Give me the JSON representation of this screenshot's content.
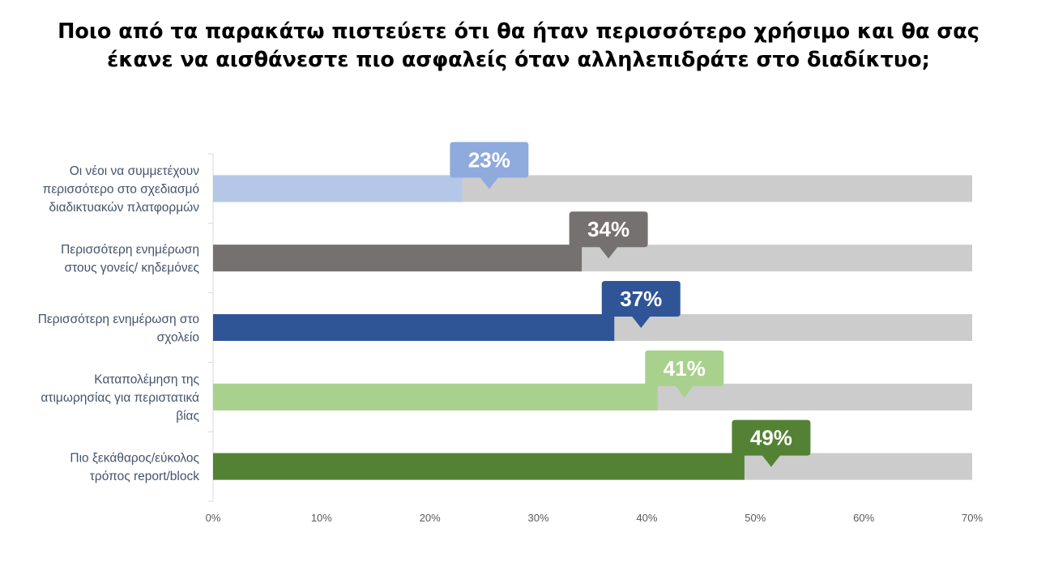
{
  "title_lines": [
    "Ποιο από τα παρακάτω πιστεύετε ότι θα ήταν περισσότερο χρήσιμο και θα σας",
    "έκανε να αισθάνεστε πιο ασφαλείς όταν αλληλεπιδράτε στο διαδίκτυο;"
  ],
  "chart_data": {
    "type": "bar",
    "orientation": "horizontal",
    "title": "Ποιο από τα παρακάτω πιστεύετε ότι θα ήταν περισσότερο χρήσιμο και θα σας έκανε να αισθάνεστε πιο ασφαλείς όταν αλληλεπιδράτε στο διαδίκτυο;",
    "xlabel": "",
    "ylabel": "",
    "xlim": [
      0,
      70
    ],
    "xticks": [
      "0%",
      "10%",
      "20%",
      "30%",
      "40%",
      "50%",
      "60%",
      "70%"
    ],
    "background_bar_value": 70,
    "background_color": "#cccccc",
    "grid": false,
    "categories": [
      [
        "Οι νέοι να συμμετέχουν",
        "περισσότερο στο σχεδιασμό",
        "διαδικτυακών πλατφορμών"
      ],
      [
        "Περισσότερη ενημέρωση",
        "στους γονείς/ κηδεμόνες"
      ],
      [
        "Περισσότερη ενημέρωση στο",
        "σχολείο"
      ],
      [
        "Καταπολέμηση της",
        "ατιμωρησίας για περιστατικά",
        "βίας"
      ],
      [
        "Πιο ξεκάθαρος/εύκολος",
        "τρόπος report/block"
      ]
    ],
    "values": [
      23,
      34,
      37,
      41,
      49
    ],
    "labels": [
      "23%",
      "34%",
      "37%",
      "41%",
      "49%"
    ],
    "colors": [
      "#b4c7e7",
      "#767171",
      "#2f5597",
      "#a9d18e",
      "#548235"
    ],
    "label_colors": [
      "#8faadc",
      "#767171",
      "#2f5597",
      "#a9d18e",
      "#548235"
    ]
  }
}
